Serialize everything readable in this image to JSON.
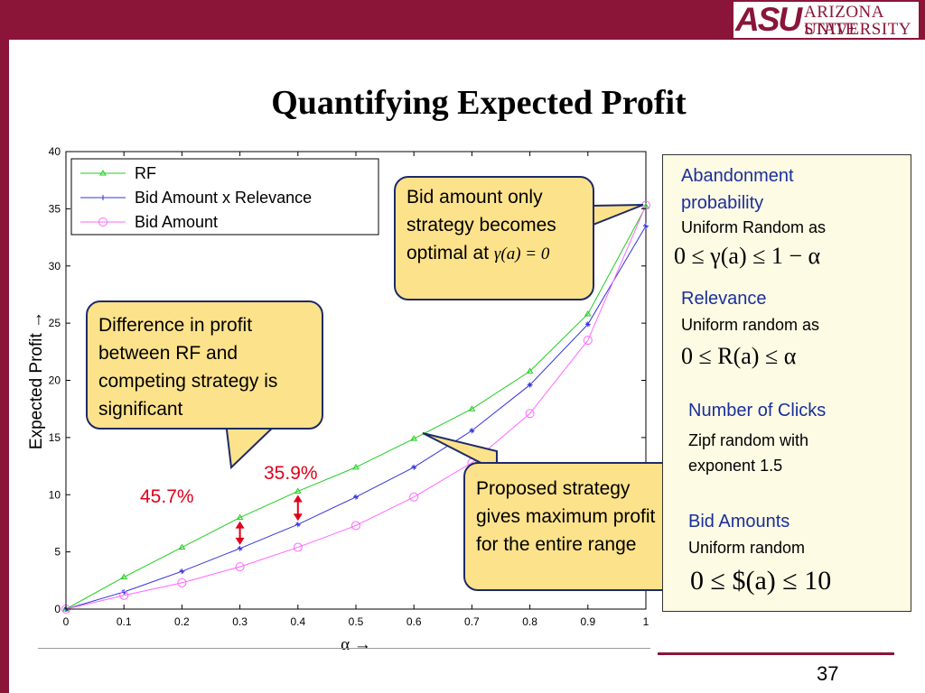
{
  "header": {
    "logo_mark": "ASU",
    "logo_line1": "ARIZONA STATE",
    "logo_line2": "UNIVERSITY",
    "brand_color": "#8a1538"
  },
  "slide_title": "Quantifying Expected Profit",
  "chart_data": {
    "type": "line",
    "x": [
      0,
      0.1,
      0.2,
      0.3,
      0.4,
      0.5,
      0.6,
      0.7,
      0.8,
      0.9,
      1
    ],
    "series": [
      {
        "name": "RF",
        "color": "#22cc22",
        "values": [
          0,
          2.8,
          5.4,
          8.0,
          10.3,
          12.4,
          14.9,
          17.5,
          20.8,
          25.8,
          35.2
        ]
      },
      {
        "name": "Bid Amount x Relevance",
        "color": "#3333dd",
        "values": [
          0,
          1.5,
          3.3,
          5.3,
          7.4,
          9.8,
          12.4,
          15.6,
          19.6,
          24.9,
          33.5
        ]
      },
      {
        "name": "Bid Amount",
        "color": "#ff66ff",
        "values": [
          0,
          1.2,
          2.3,
          3.7,
          5.4,
          7.3,
          9.8,
          12.8,
          17.1,
          23.5,
          35.3
        ]
      }
    ],
    "xlabel": "α →",
    "ylabel": "Expected Profit →",
    "xlim": [
      0,
      1
    ],
    "ylim": [
      0,
      40
    ],
    "xticks": [
      "0",
      "0.1",
      "0.2",
      "0.3",
      "0.4",
      "0.5",
      "0.6",
      "0.7",
      "0.8",
      "0.9",
      "1"
    ],
    "yticks": [
      "0",
      "5",
      "10",
      "15",
      "20",
      "25",
      "30",
      "35",
      "40"
    ],
    "grid": false,
    "legend": "top-left"
  },
  "annotations": {
    "bid_only": {
      "text": "Bid amount only strategy becomes optimal at",
      "formula": "γ(a) = 0"
    },
    "difference": {
      "text": "Difference in profit between RF and competing strategy is significant"
    },
    "proposed": {
      "text": "Proposed strategy gives maximum profit for the entire range"
    },
    "pct1": "45.7%",
    "pct2": "35.9%",
    "pct_arrows_x": [
      0.3,
      0.4
    ]
  },
  "right_panel": {
    "abandonment_head": "Abandonment probability",
    "abandonment_sub": "Uniform Random as",
    "abandonment_formula": "0 ≤ γ(a) ≤ 1 − α",
    "relevance_head": "Relevance",
    "relevance_sub": "Uniform random as",
    "relevance_formula": "0 ≤ R(a) ≤ α",
    "clicks_head": "Number of Clicks",
    "clicks_sub": "Zipf random with exponent 1.5",
    "bids_head": "Bid Amounts",
    "bids_sub": "Uniform random",
    "bids_formula": "0 ≤ $(a) ≤ 10"
  },
  "page_number": "37"
}
